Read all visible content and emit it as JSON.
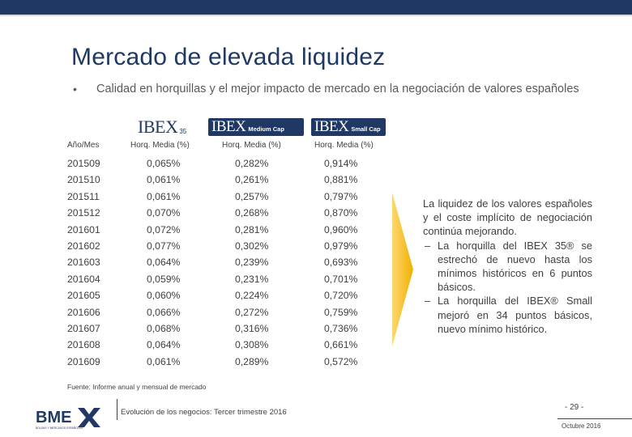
{
  "slide": {
    "title": "Mercado de elevada liquidez",
    "bullet": "Calidad en horquillas y el mejor impacto de mercado en la negociación de valores españoles"
  },
  "logos": {
    "ibex35": {
      "brand": "IBEX",
      "suffix": "35"
    },
    "medium_cap": {
      "brand": "IBEX",
      "suffix": "Medium Cap"
    },
    "small_cap": {
      "brand": "IBEX",
      "suffix": "Small Cap"
    },
    "bme": {
      "name": "BME",
      "tagline": "BOLSAS Y MERCADOS ESPAÑOLES"
    }
  },
  "table": {
    "headers": {
      "year": "Año/Mes",
      "ibex35": "Horq. Media (%)",
      "medium": "Horq. Media (%)",
      "small": "Horq. Media (%)"
    },
    "rows": [
      {
        "period": "201509",
        "ibex35": "0,065%",
        "medium": "0,282%",
        "small": "0,914%"
      },
      {
        "period": "201510",
        "ibex35": "0,061%",
        "medium": "0,261%",
        "small": "0,881%"
      },
      {
        "period": "201511",
        "ibex35": "0,061%",
        "medium": "0,257%",
        "small": "0,797%"
      },
      {
        "period": "201512",
        "ibex35": "0,070%",
        "medium": "0,268%",
        "small": "0,870%"
      },
      {
        "period": "201601",
        "ibex35": "0,072%",
        "medium": "0,281%",
        "small": "0,960%"
      },
      {
        "period": "201602",
        "ibex35": "0,077%",
        "medium": "0,302%",
        "small": "0,979%"
      },
      {
        "period": "201603",
        "ibex35": "0,064%",
        "medium": "0,239%",
        "small": "0,693%"
      },
      {
        "period": "201604",
        "ibex35": "0,059%",
        "medium": "0,231%",
        "small": "0,701%"
      },
      {
        "period": "201605",
        "ibex35": "0,060%",
        "medium": "0,224%",
        "small": "0,720%"
      },
      {
        "period": "201606",
        "ibex35": "0,066%",
        "medium": "0,272%",
        "small": "0,759%"
      },
      {
        "period": "201607",
        "ibex35": "0,068%",
        "medium": "0,316%",
        "small": "0,736%"
      },
      {
        "period": "201608",
        "ibex35": "0,064%",
        "medium": "0,308%",
        "small": "0,661%"
      },
      {
        "period": "201609",
        "ibex35": "0,061%",
        "medium": "0,289%",
        "small": "0,572%"
      }
    ]
  },
  "commentary": {
    "intro": "La liquidez de los valores españoles y el coste implícito de negociación continúa mejorando.",
    "items": [
      "La horquilla del IBEX 35® se estrechó de nuevo hasta los mínimos históricos en 6 puntos básicos.",
      "La horquilla del IBEX® Small mejoró en 34 puntos básicos, nuevo mínimo histórico."
    ],
    "dash": "–"
  },
  "footer": {
    "source": "Fuente: Informe anual y mensual de mercado",
    "title": "Evolución de los negocios: Tercer trimestre 2016",
    "page": "- 29 -",
    "date": "Octubre 2016"
  },
  "colors": {
    "navy": "#1f3864",
    "arrow": "#f5b800",
    "text": "#404040"
  }
}
